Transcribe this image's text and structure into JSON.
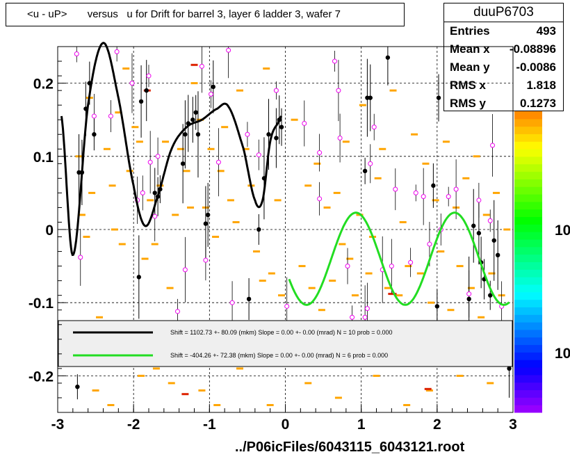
{
  "title": "<u - uP>       versus   u for Drift for barrel 3, layer 6 ladder 3, wafer 7",
  "footer": "../P06icFiles/6043115_6043121.root",
  "stats": {
    "name": "duuP6703",
    "rows": [
      {
        "label": "Entries",
        "value": "493"
      },
      {
        "label": "Mean x",
        "value": "-0.08896"
      },
      {
        "label": "Mean y",
        "value": "-0.0086"
      },
      {
        "label": "RMS x",
        "value": "1.818"
      },
      {
        "label": "RMS y",
        "value": "0.1273"
      }
    ]
  },
  "palette_labels": [
    "10",
    "10"
  ],
  "colors": {
    "fit_black": "#000000",
    "fit_green": "#22dd22",
    "marker_orange": "#ffa500",
    "marker_magenta": "#ee00ee"
  },
  "chart_data": {
    "type": "scatter",
    "xlim": [
      -3,
      3
    ],
    "ylim": [
      -0.25,
      0.25
    ],
    "x_ticks": [
      "-3",
      "-2",
      "-1",
      "0",
      "1",
      "2",
      "3"
    ],
    "y_ticks": [
      "-0.2",
      "-0.1",
      "0",
      "0.1",
      "0.2"
    ],
    "grid": true,
    "legend": [
      {
        "text": "Shift =  1102.73 +- 80.09 (mkm) Slope =     0.00 +- 0.00 (mrad)  N = 10 prob = 0.000",
        "color": "#000000"
      },
      {
        "text": "Shift =  -404.26 +- 72.38 (mkm) Slope =     0.00 +- 0.00 (mrad)  N = 6 prob = 0.000",
        "color": "#22dd22"
      }
    ],
    "profile_black": [
      [
        -2.74,
        -0.215
      ],
      [
        -2.72,
        0.078
      ],
      [
        -2.68,
        0.078
      ],
      [
        -2.63,
        0.165
      ],
      [
        -2.58,
        0.2
      ],
      [
        -2.52,
        0.13
      ],
      [
        -1.93,
        -0.065
      ],
      [
        -1.9,
        0.175
      ],
      [
        -1.83,
        0.19
      ],
      [
        -1.72,
        0.05
      ],
      [
        -1.68,
        0.045
      ],
      [
        -1.65,
        0.055
      ],
      [
        -1.35,
        0.09
      ],
      [
        -1.32,
        0.13
      ],
      [
        -1.28,
        0.145
      ],
      [
        -1.22,
        0.15
      ],
      [
        -1.18,
        0.16
      ],
      [
        -1.15,
        0.13
      ],
      [
        -1.05,
        0.008
      ],
      [
        -1.02,
        0.02
      ],
      [
        -0.95,
        0.195
      ],
      [
        -0.48,
        -0.095
      ],
      [
        -0.35,
        0.0
      ],
      [
        -0.28,
        0.07
      ],
      [
        -0.22,
        0.13
      ],
      [
        -0.12,
        0.125
      ],
      [
        -0.08,
        0.15
      ],
      [
        -0.05,
        0.14
      ],
      [
        1.05,
        0.08
      ],
      [
        1.08,
        0.18
      ],
      [
        1.12,
        0.18
      ],
      [
        1.35,
        0.235
      ],
      [
        1.95,
        0.06
      ],
      [
        2.0,
        -0.105
      ],
      [
        2.42,
        -0.095
      ],
      [
        2.48,
        0.005
      ],
      [
        2.55,
        -0.005
      ],
      [
        2.58,
        -0.045
      ],
      [
        2.62,
        -0.068
      ],
      [
        2.7,
        -0.09
      ],
      [
        2.75,
        -0.015
      ],
      [
        2.8,
        -0.035
      ],
      [
        2.95,
        -0.19
      ],
      [
        2.02,
        0.18
      ]
    ],
    "points_magenta": [
      [
        -2.75,
        0.24
      ],
      [
        -2.7,
        -0.038
      ],
      [
        -2.52,
        0.155
      ],
      [
        -2.3,
        0.155
      ],
      [
        -2.22,
        0.243
      ],
      [
        -2.02,
        0.2
      ],
      [
        -1.95,
        0.04
      ],
      [
        -1.88,
        0.05
      ],
      [
        -1.8,
        0.21
      ],
      [
        -1.78,
        0.092
      ],
      [
        -1.72,
        0.018
      ],
      [
        -1.68,
        0.1
      ],
      [
        -1.42,
        -0.112
      ],
      [
        -1.32,
        -0.055
      ],
      [
        -1.1,
        0.223
      ],
      [
        -1.05,
        -0.042
      ],
      [
        -0.98,
        0.185
      ],
      [
        -0.88,
        0.092
      ],
      [
        -0.75,
        0.245
      ],
      [
        -0.7,
        -0.1
      ],
      [
        -0.35,
        0.102
      ],
      [
        -0.12,
        0.19
      ],
      [
        0.02,
        -0.105
      ],
      [
        0.25,
        0.145
      ],
      [
        0.45,
        0.042
      ],
      [
        0.65,
        0.23
      ],
      [
        0.7,
        0.19
      ],
      [
        0.72,
        0.125
      ],
      [
        0.82,
        -0.05
      ],
      [
        0.88,
        -0.12
      ],
      [
        1.05,
        -0.12
      ],
      [
        1.08,
        -0.108
      ],
      [
        1.12,
        0.09
      ],
      [
        1.17,
        0.14
      ],
      [
        1.28,
        -0.055
      ],
      [
        1.4,
        -0.05
      ],
      [
        1.45,
        0.055
      ],
      [
        1.65,
        -0.045
      ],
      [
        1.72,
        0.05
      ],
      [
        1.82,
        0.045
      ],
      [
        1.9,
        -0.02
      ],
      [
        2.05,
        0.0
      ],
      [
        2.15,
        0.045
      ],
      [
        2.25,
        0.055
      ],
      [
        2.42,
        -0.088
      ],
      [
        2.55,
        0.04
      ],
      [
        2.7,
        0.012
      ],
      [
        2.73,
        0.115
      ],
      [
        2.85,
        -0.105
      ],
      [
        0.45,
        0.105
      ],
      [
        -0.5,
        0.13
      ]
    ],
    "orange_points": [
      [
        -2.72,
        0.1
      ],
      [
        -2.68,
        0.02
      ],
      [
        -2.62,
        -0.01
      ],
      [
        -2.58,
        0.18
      ],
      [
        -2.55,
        0.05
      ],
      [
        -2.45,
        -0.12
      ],
      [
        -2.35,
        0.11
      ],
      [
        -2.28,
        0.06
      ],
      [
        -2.25,
        0.0
      ],
      [
        -2.2,
        0.16
      ],
      [
        -2.15,
        -0.02
      ],
      [
        -2.1,
        0.22
      ],
      [
        -2.05,
        0.08
      ],
      [
        -1.98,
        0.14
      ],
      [
        -1.92,
        0.12
      ],
      [
        -1.85,
        -0.04
      ],
      [
        -1.78,
        0.04
      ],
      [
        -1.72,
        -0.02
      ],
      [
        -1.65,
        0.06
      ],
      [
        -1.58,
        0.12
      ],
      [
        -1.52,
        -0.08
      ],
      [
        -1.45,
        0.02
      ],
      [
        -1.38,
        0.11
      ],
      [
        -1.3,
        0.08
      ],
      [
        -1.25,
        0.03
      ],
      [
        -1.2,
        0.2
      ],
      [
        -1.12,
        0.15
      ],
      [
        -1.05,
        0.03
      ],
      [
        -0.98,
        0.11
      ],
      [
        -0.92,
        -0.01
      ],
      [
        -0.85,
        0.08
      ],
      [
        -0.8,
        0.14
      ],
      [
        -0.72,
        0.04
      ],
      [
        -0.65,
        0.01
      ],
      [
        -0.6,
        0.19
      ],
      [
        -0.52,
        0.11
      ],
      [
        -0.45,
        0.06
      ],
      [
        -0.38,
        -0.03
      ],
      [
        -0.3,
        -0.07
      ],
      [
        -0.25,
        0.22
      ],
      [
        -0.18,
        -0.06
      ],
      [
        -0.1,
        0.04
      ],
      [
        -0.05,
        -0.09
      ],
      [
        0.12,
        0.15
      ],
      [
        0.22,
        -0.05
      ],
      [
        0.3,
        0.06
      ],
      [
        0.35,
        -0.08
      ],
      [
        0.42,
        0.09
      ],
      [
        0.48,
        -0.11
      ],
      [
        0.55,
        0.03
      ],
      [
        0.62,
        -0.07
      ],
      [
        0.68,
        0.05
      ],
      [
        0.75,
        -0.02
      ],
      [
        0.8,
        0.12
      ],
      [
        0.85,
        -0.04
      ],
      [
        0.92,
        -0.09
      ],
      [
        0.98,
        0.02
      ],
      [
        1.02,
        0.17
      ],
      [
        1.1,
        -0.06
      ],
      [
        1.15,
        -0.01
      ],
      [
        1.22,
        0.07
      ],
      [
        1.28,
        0.11
      ],
      [
        1.35,
        -0.08
      ],
      [
        1.42,
        0.19
      ],
      [
        1.5,
        -0.09
      ],
      [
        1.55,
        0.01
      ],
      [
        1.62,
        -0.05
      ],
      [
        1.7,
        0.13
      ],
      [
        1.78,
        -0.06
      ],
      [
        1.85,
        0.09
      ],
      [
        1.92,
        -0.1
      ],
      [
        1.98,
        0.04
      ],
      [
        2.05,
        -0.03
      ],
      [
        2.12,
        0.12
      ],
      [
        2.18,
        -0.11
      ],
      [
        2.25,
        0.03
      ],
      [
        2.3,
        -0.05
      ],
      [
        2.38,
        0.07
      ],
      [
        2.45,
        -0.08
      ],
      [
        2.52,
        0.1
      ],
      [
        2.58,
        -0.12
      ],
      [
        2.65,
        0.02
      ],
      [
        2.72,
        -0.06
      ],
      [
        2.78,
        0.05
      ],
      [
        2.85,
        -0.09
      ],
      [
        2.92,
        0.0
      ],
      [
        -2.5,
        -0.22
      ],
      [
        -1.9,
        -0.2
      ],
      [
        -1.5,
        -0.21
      ],
      [
        -1.1,
        -0.22
      ],
      [
        -0.6,
        -0.19
      ],
      [
        -0.2,
        -0.24
      ],
      [
        0.3,
        -0.21
      ],
      [
        0.7,
        -0.23
      ],
      [
        1.2,
        -0.2
      ],
      [
        1.6,
        -0.24
      ],
      [
        1.9,
        -0.22
      ],
      [
        2.3,
        -0.2
      ],
      [
        2.7,
        -0.21
      ],
      [
        -2.3,
        -0.24
      ],
      [
        -1.7,
        -0.19
      ],
      [
        -0.9,
        -0.24
      ]
    ],
    "red_points": [
      [
        -1.82,
        0.19
      ],
      [
        -1.2,
        0.225
      ],
      [
        -1.32,
        -0.225
      ],
      [
        1.4,
        -0.088
      ],
      [
        1.42,
        -0.088
      ],
      [
        1.88,
        -0.218
      ]
    ],
    "fit_black": {
      "x_range": [
        -2.95,
        -0.05
      ]
    },
    "fit_green": {
      "x_range": [
        0.05,
        2.95
      ]
    }
  }
}
